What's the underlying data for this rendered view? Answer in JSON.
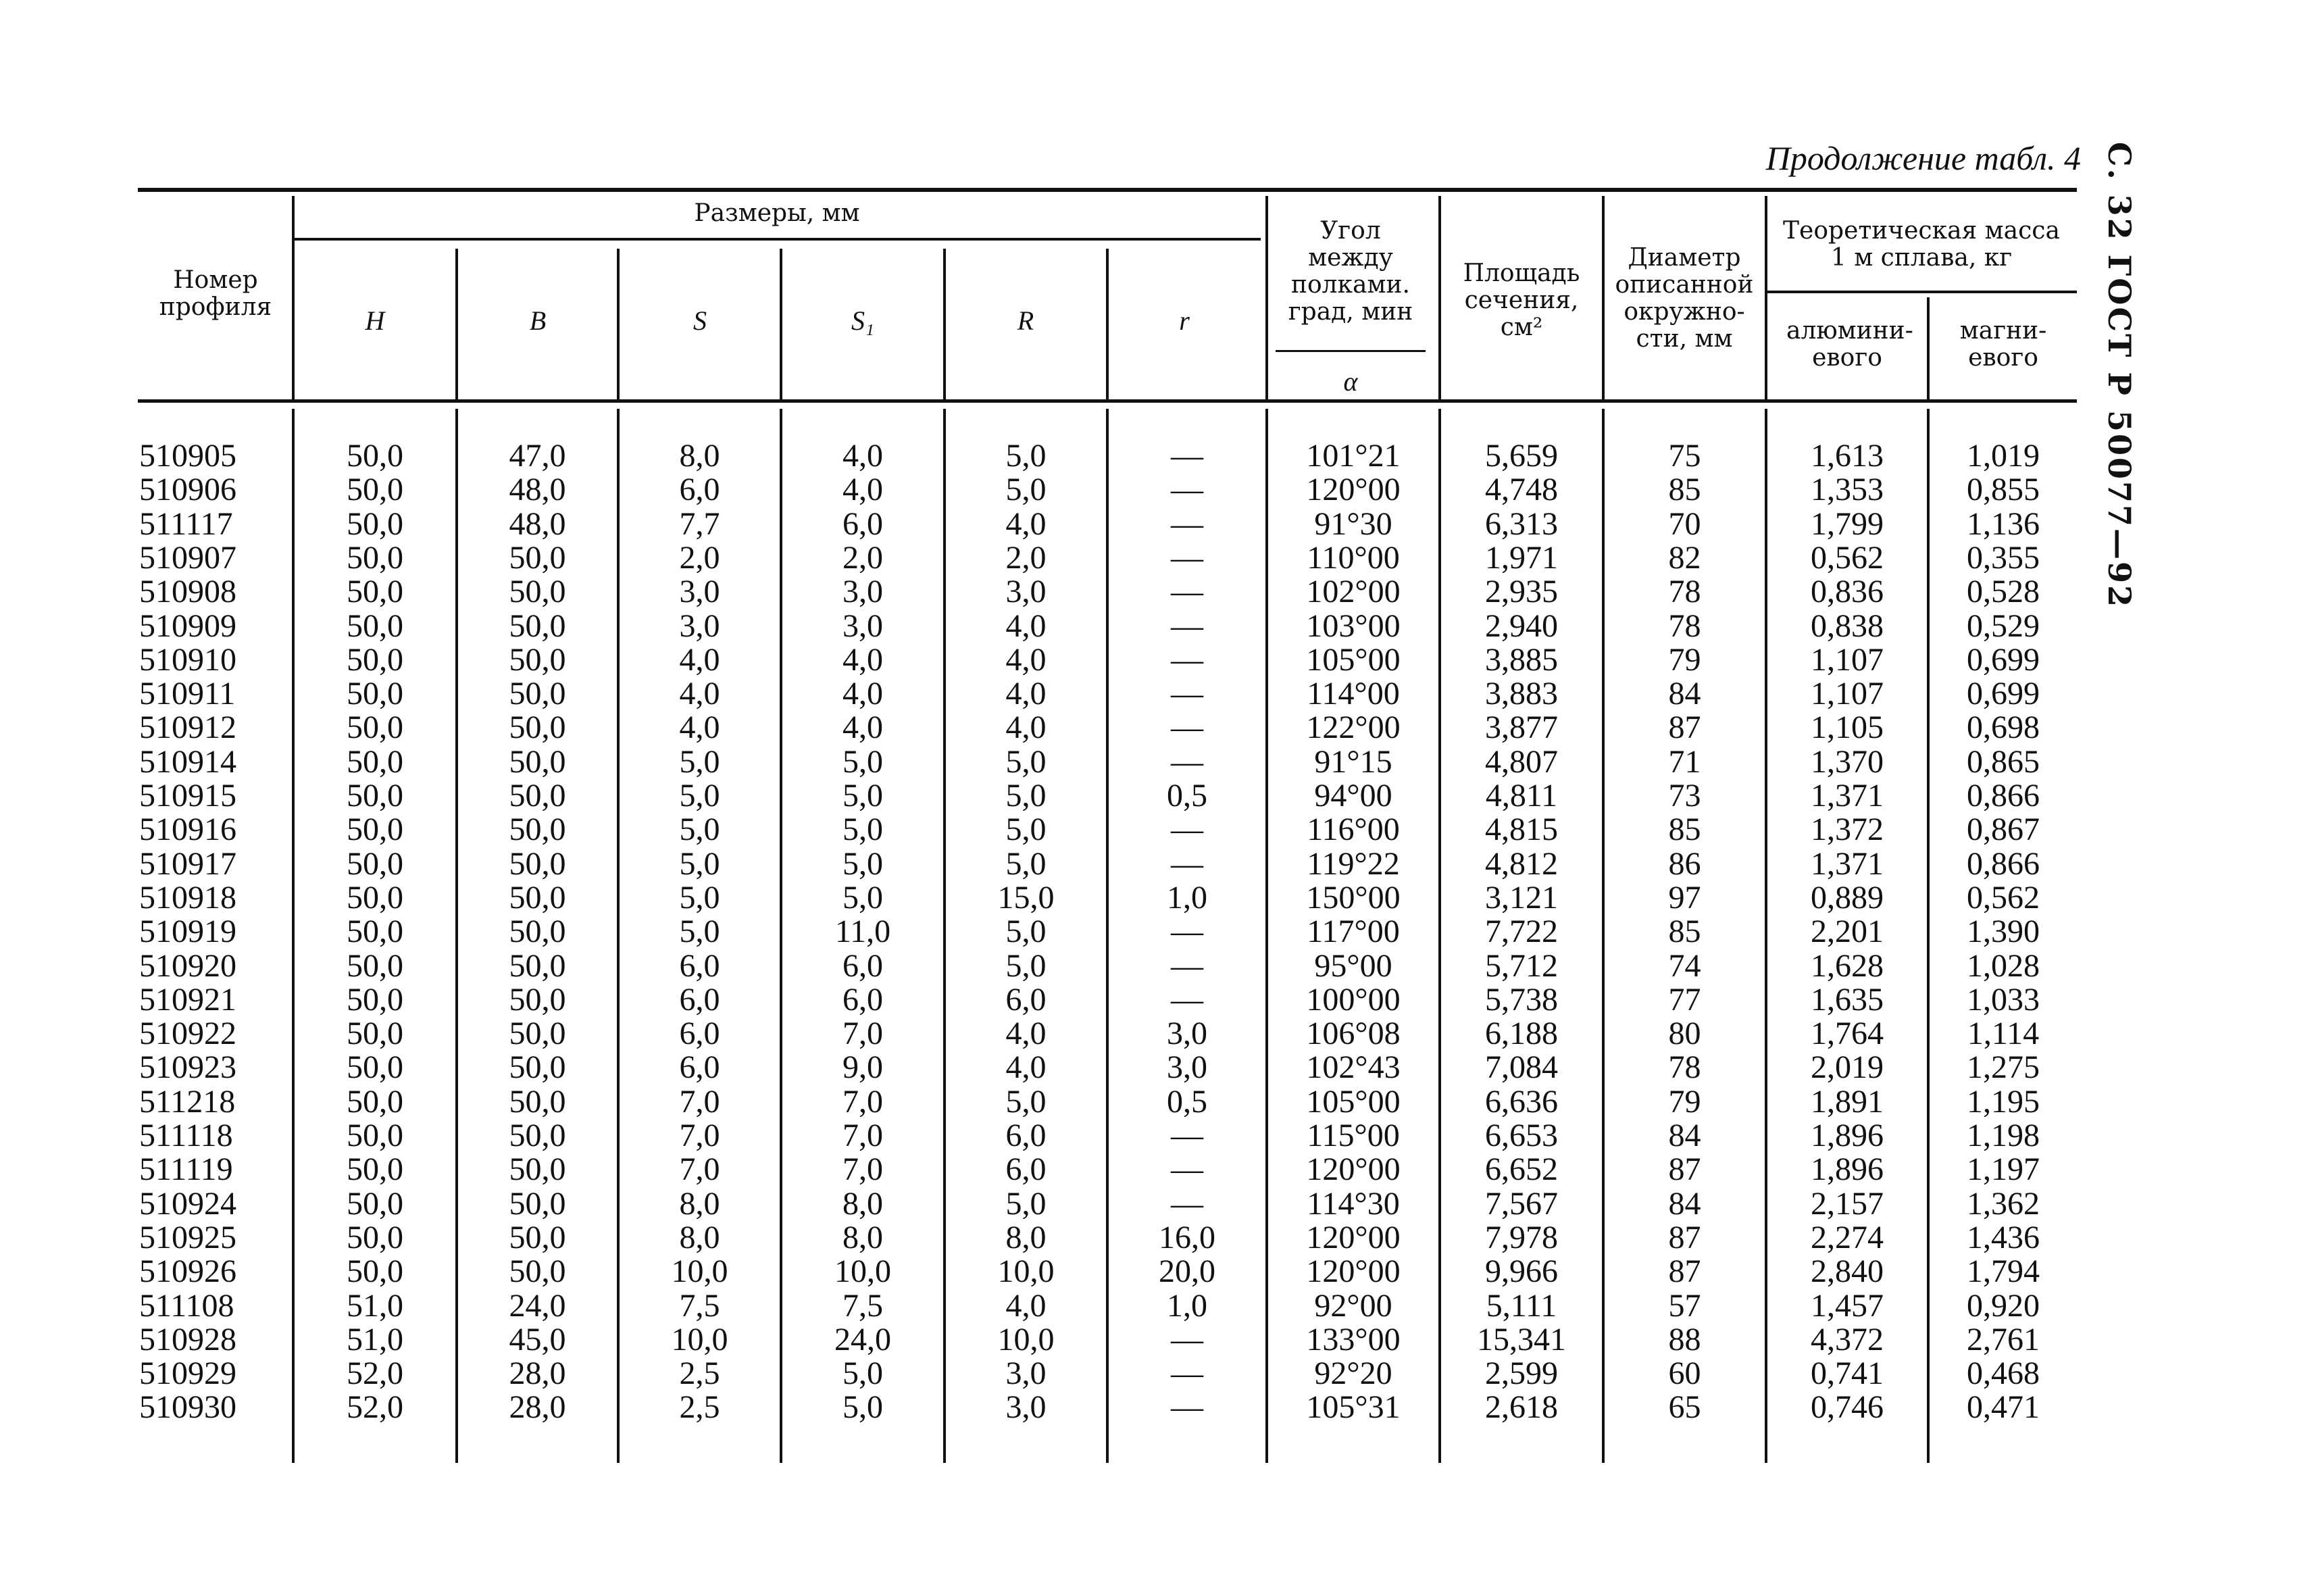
{
  "page": {
    "continuation_title": "Продолжение табл. 4",
    "side_header": "С. 32 ГОСТ Р 50077—92"
  },
  "header": {
    "profile_number": "Номер профиля",
    "dimensions_group": "Размеры, мм",
    "H": "H",
    "B": "B",
    "S": "S",
    "S1": "S₁",
    "R": "R",
    "r": "r",
    "angle": "Угол между полками. град, мин",
    "angle_symbol": "α",
    "area": "Площадь сечения, см²",
    "diameter": "Диаметр описанной окружно-сти, мм",
    "mass_group": "Теоретическая масса 1 м сплава, кг",
    "aluminium": "алюмини-евого",
    "magnesium": "магни-евого"
  },
  "rows": [
    [
      "510905",
      "50,0",
      "47,0",
      "8,0",
      "4,0",
      "5,0",
      "—",
      "101°21",
      "5,659",
      "75",
      "1,613",
      "1,019"
    ],
    [
      "510906",
      "50,0",
      "48,0",
      "6,0",
      "4,0",
      "5,0",
      "—",
      "120°00",
      "4,748",
      "85",
      "1,353",
      "0,855"
    ],
    [
      "511117",
      "50,0",
      "48,0",
      "7,7",
      "6,0",
      "4,0",
      "—",
      "91°30",
      "6,313",
      "70",
      "1,799",
      "1,136"
    ],
    [
      "510907",
      "50,0",
      "50,0",
      "2,0",
      "2,0",
      "2,0",
      "—",
      "110°00",
      "1,971",
      "82",
      "0,562",
      "0,355"
    ],
    [
      "510908",
      "50,0",
      "50,0",
      "3,0",
      "3,0",
      "3,0",
      "—",
      "102°00",
      "2,935",
      "78",
      "0,836",
      "0,528"
    ],
    [
      "510909",
      "50,0",
      "50,0",
      "3,0",
      "3,0",
      "4,0",
      "—",
      "103°00",
      "2,940",
      "78",
      "0,838",
      "0,529"
    ],
    [
      "510910",
      "50,0",
      "50,0",
      "4,0",
      "4,0",
      "4,0",
      "—",
      "105°00",
      "3,885",
      "79",
      "1,107",
      "0,699"
    ],
    [
      "510911",
      "50,0",
      "50,0",
      "4,0",
      "4,0",
      "4,0",
      "—",
      "114°00",
      "3,883",
      "84",
      "1,107",
      "0,699"
    ],
    [
      "510912",
      "50,0",
      "50,0",
      "4,0",
      "4,0",
      "4,0",
      "—",
      "122°00",
      "3,877",
      "87",
      "1,105",
      "0,698"
    ],
    [
      "510914",
      "50,0",
      "50,0",
      "5,0",
      "5,0",
      "5,0",
      "—",
      "91°15",
      "4,807",
      "71",
      "1,370",
      "0,865"
    ],
    [
      "510915",
      "50,0",
      "50,0",
      "5,0",
      "5,0",
      "5,0",
      "0,5",
      "94°00",
      "4,811",
      "73",
      "1,371",
      "0,866"
    ],
    [
      "510916",
      "50,0",
      "50,0",
      "5,0",
      "5,0",
      "5,0",
      "—",
      "116°00",
      "4,815",
      "85",
      "1,372",
      "0,867"
    ],
    [
      "510917",
      "50,0",
      "50,0",
      "5,0",
      "5,0",
      "5,0",
      "—",
      "119°22",
      "4,812",
      "86",
      "1,371",
      "0,866"
    ],
    [
      "510918",
      "50,0",
      "50,0",
      "5,0",
      "5,0",
      "15,0",
      "1,0",
      "150°00",
      "3,121",
      "97",
      "0,889",
      "0,562"
    ],
    [
      "510919",
      "50,0",
      "50,0",
      "5,0",
      "11,0",
      "5,0",
      "—",
      "117°00",
      "7,722",
      "85",
      "2,201",
      "1,390"
    ],
    [
      "510920",
      "50,0",
      "50,0",
      "6,0",
      "6,0",
      "5,0",
      "—",
      "95°00",
      "5,712",
      "74",
      "1,628",
      "1,028"
    ],
    [
      "510921",
      "50,0",
      "50,0",
      "6,0",
      "6,0",
      "6,0",
      "—",
      "100°00",
      "5,738",
      "77",
      "1,635",
      "1,033"
    ],
    [
      "510922",
      "50,0",
      "50,0",
      "6,0",
      "7,0",
      "4,0",
      "3,0",
      "106°08",
      "6,188",
      "80",
      "1,764",
      "1,114"
    ],
    [
      "510923",
      "50,0",
      "50,0",
      "6,0",
      "9,0",
      "4,0",
      "3,0",
      "102°43",
      "7,084",
      "78",
      "2,019",
      "1,275"
    ],
    [
      "511218",
      "50,0",
      "50,0",
      "7,0",
      "7,0",
      "5,0",
      "0,5",
      "105°00",
      "6,636",
      "79",
      "1,891",
      "1,195"
    ],
    [
      "511118",
      "50,0",
      "50,0",
      "7,0",
      "7,0",
      "6,0",
      "—",
      "115°00",
      "6,653",
      "84",
      "1,896",
      "1,198"
    ],
    [
      "511119",
      "50,0",
      "50,0",
      "7,0",
      "7,0",
      "6,0",
      "—",
      "120°00",
      "6,652",
      "87",
      "1,896",
      "1,197"
    ],
    [
      "510924",
      "50,0",
      "50,0",
      "8,0",
      "8,0",
      "5,0",
      "—",
      "114°30",
      "7,567",
      "84",
      "2,157",
      "1,362"
    ],
    [
      "510925",
      "50,0",
      "50,0",
      "8,0",
      "8,0",
      "8,0",
      "16,0",
      "120°00",
      "7,978",
      "87",
      "2,274",
      "1,436"
    ],
    [
      "510926",
      "50,0",
      "50,0",
      "10,0",
      "10,0",
      "10,0",
      "20,0",
      "120°00",
      "9,966",
      "87",
      "2,840",
      "1,794"
    ],
    [
      "511108",
      "51,0",
      "24,0",
      "7,5",
      "7,5",
      "4,0",
      "1,0",
      "92°00",
      "5,111",
      "57",
      "1,457",
      "0,920"
    ],
    [
      "510928",
      "51,0",
      "45,0",
      "10,0",
      "24,0",
      "10,0",
      "—",
      "133°00",
      "15,341",
      "88",
      "4,372",
      "2,761"
    ],
    [
      "510929",
      "52,0",
      "28,0",
      "2,5",
      "5,0",
      "3,0",
      "—",
      "92°20",
      "2,599",
      "60",
      "0,741",
      "0,468"
    ],
    [
      "510930",
      "52,0",
      "28,0",
      "2,5",
      "5,0",
      "3,0",
      "—",
      "105°31",
      "2,618",
      "65",
      "0,746",
      "0,471"
    ]
  ]
}
